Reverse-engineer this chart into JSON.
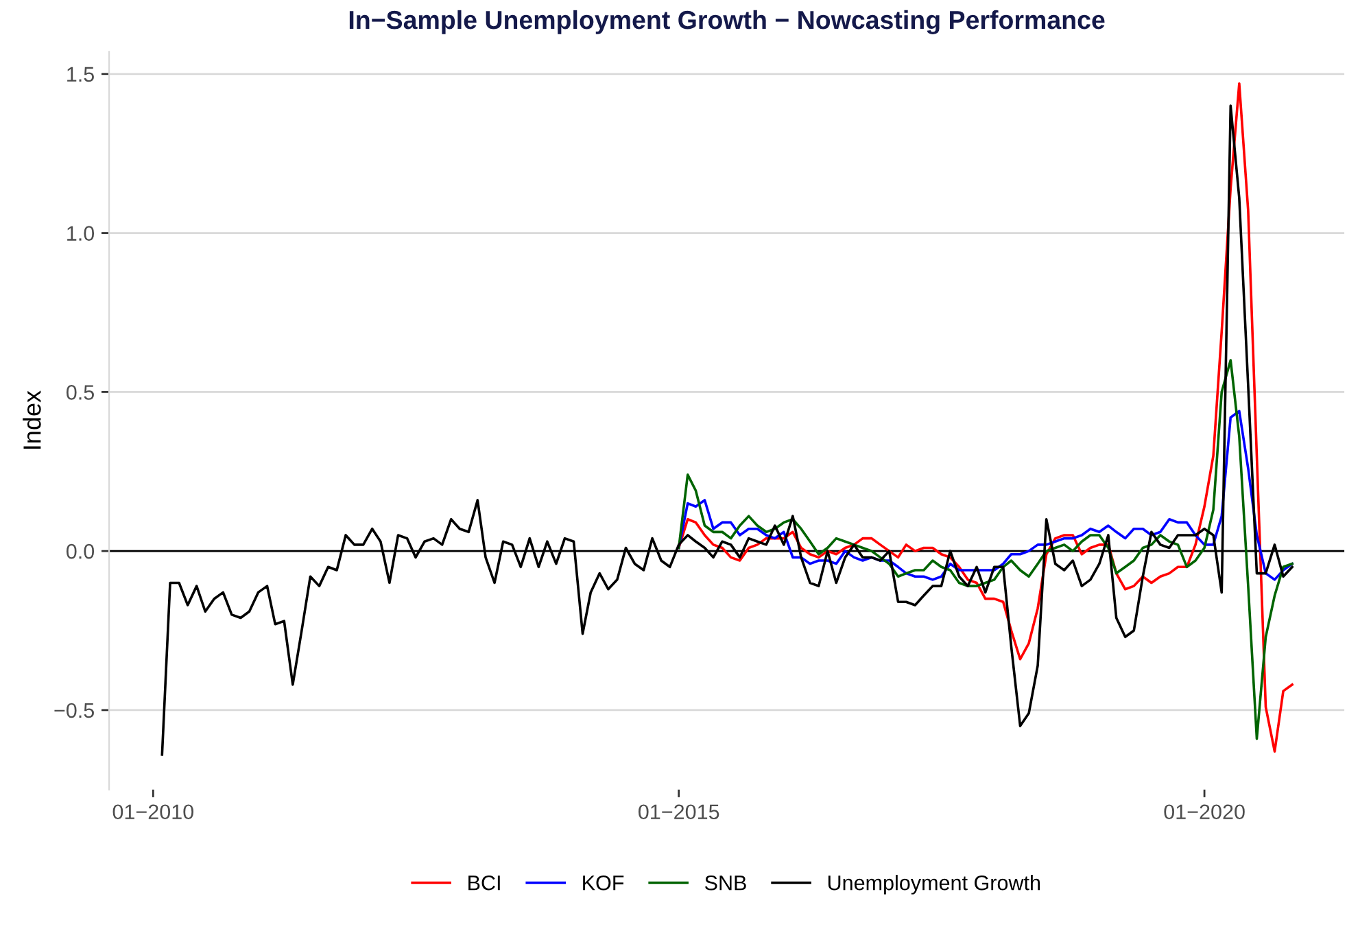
{
  "chart_data": {
    "type": "line",
    "title": "In−Sample Unemployment Growth − Nowcasting Performance",
    "ylabel": "Index",
    "x": [
      "2010-02",
      "2010-03",
      "2010-04",
      "2010-05",
      "2010-06",
      "2010-07",
      "2010-08",
      "2010-09",
      "2010-10",
      "2010-11",
      "2010-12",
      "2011-01",
      "2011-02",
      "2011-03",
      "2011-04",
      "2011-05",
      "2011-06",
      "2011-07",
      "2011-08",
      "2011-09",
      "2011-10",
      "2011-11",
      "2011-12",
      "2012-01",
      "2012-02",
      "2012-03",
      "2012-04",
      "2012-05",
      "2012-06",
      "2012-07",
      "2012-08",
      "2012-09",
      "2012-10",
      "2012-11",
      "2012-12",
      "2013-01",
      "2013-02",
      "2013-03",
      "2013-04",
      "2013-05",
      "2013-06",
      "2013-07",
      "2013-08",
      "2013-09",
      "2013-10",
      "2013-11",
      "2013-12",
      "2014-01",
      "2014-02",
      "2014-03",
      "2014-04",
      "2014-05",
      "2014-06",
      "2014-07",
      "2014-08",
      "2014-09",
      "2014-10",
      "2014-11",
      "2014-12",
      "2015-01",
      "2015-02",
      "2015-03",
      "2015-04",
      "2015-05",
      "2015-06",
      "2015-07",
      "2015-08",
      "2015-09",
      "2015-10",
      "2015-11",
      "2015-12",
      "2016-01",
      "2016-02",
      "2016-03",
      "2016-04",
      "2016-05",
      "2016-06",
      "2016-07",
      "2016-08",
      "2016-09",
      "2016-10",
      "2016-11",
      "2016-12",
      "2017-01",
      "2017-02",
      "2017-03",
      "2017-04",
      "2017-05",
      "2017-06",
      "2017-07",
      "2017-08",
      "2017-09",
      "2017-10",
      "2017-11",
      "2017-12",
      "2018-01",
      "2018-02",
      "2018-03",
      "2018-04",
      "2018-05",
      "2018-06",
      "2018-07",
      "2018-08",
      "2018-09",
      "2018-10",
      "2018-11",
      "2018-12",
      "2019-01",
      "2019-02",
      "2019-03",
      "2019-04",
      "2019-05",
      "2019-06",
      "2019-07",
      "2019-08",
      "2019-09",
      "2019-10",
      "2019-11",
      "2019-12",
      "2020-01",
      "2020-02",
      "2020-03",
      "2020-04",
      "2020-05",
      "2020-06",
      "2020-07",
      "2020-08",
      "2020-09",
      "2020-10",
      "2020-11"
    ],
    "series": [
      {
        "name": "BCI",
        "color": "#ff0000",
        "values": [
          null,
          null,
          null,
          null,
          null,
          null,
          null,
          null,
          null,
          null,
          null,
          null,
          null,
          null,
          null,
          null,
          null,
          null,
          null,
          null,
          null,
          null,
          null,
          null,
          null,
          null,
          null,
          null,
          null,
          null,
          null,
          null,
          null,
          null,
          null,
          null,
          null,
          null,
          null,
          null,
          null,
          null,
          null,
          null,
          null,
          null,
          null,
          null,
          null,
          null,
          null,
          null,
          null,
          null,
          null,
          null,
          null,
          null,
          null,
          0.01,
          0.1,
          0.09,
          0.05,
          0.02,
          0.01,
          -0.02,
          -0.03,
          0.01,
          0.02,
          0.04,
          0.04,
          0.04,
          0.06,
          0.01,
          -0.01,
          -0.02,
          0.0,
          -0.01,
          0.01,
          0.02,
          0.04,
          0.04,
          0.02,
          0.0,
          -0.02,
          0.02,
          0.0,
          0.01,
          0.01,
          -0.01,
          -0.02,
          -0.05,
          -0.09,
          -0.1,
          -0.15,
          -0.15,
          -0.16,
          -0.25,
          -0.34,
          -0.29,
          -0.18,
          -0.01,
          0.04,
          0.05,
          0.05,
          -0.01,
          0.01,
          0.02,
          0.02,
          -0.07,
          -0.12,
          -0.11,
          -0.08,
          -0.1,
          -0.08,
          -0.07,
          -0.05,
          -0.05,
          0.02,
          0.14,
          0.3,
          0.69,
          1.14,
          1.47,
          1.07,
          0.3,
          -0.49,
          -0.63,
          -0.44,
          -0.42
        ]
      },
      {
        "name": "KOF",
        "color": "#0000ff",
        "values": [
          null,
          null,
          null,
          null,
          null,
          null,
          null,
          null,
          null,
          null,
          null,
          null,
          null,
          null,
          null,
          null,
          null,
          null,
          null,
          null,
          null,
          null,
          null,
          null,
          null,
          null,
          null,
          null,
          null,
          null,
          null,
          null,
          null,
          null,
          null,
          null,
          null,
          null,
          null,
          null,
          null,
          null,
          null,
          null,
          null,
          null,
          null,
          null,
          null,
          null,
          null,
          null,
          null,
          null,
          null,
          null,
          null,
          null,
          null,
          0.01,
          0.15,
          0.14,
          0.16,
          0.07,
          0.09,
          0.09,
          0.05,
          0.07,
          0.07,
          0.05,
          0.04,
          0.06,
          -0.02,
          -0.02,
          -0.04,
          -0.03,
          -0.03,
          -0.04,
          0.0,
          -0.02,
          -0.03,
          -0.02,
          -0.03,
          -0.03,
          -0.05,
          -0.07,
          -0.08,
          -0.08,
          -0.09,
          -0.08,
          -0.04,
          -0.06,
          -0.06,
          -0.06,
          -0.06,
          -0.06,
          -0.04,
          -0.01,
          -0.01,
          0.0,
          0.02,
          0.02,
          0.03,
          0.04,
          0.04,
          0.05,
          0.07,
          0.06,
          0.08,
          0.06,
          0.04,
          0.07,
          0.07,
          0.05,
          0.06,
          0.1,
          0.09,
          0.09,
          0.05,
          0.02,
          0.02,
          0.11,
          0.42,
          0.44,
          0.26,
          0.05,
          -0.07,
          -0.09,
          -0.06,
          -0.04
        ]
      },
      {
        "name": "SNB",
        "color": "#006400",
        "values": [
          null,
          null,
          null,
          null,
          null,
          null,
          null,
          null,
          null,
          null,
          null,
          null,
          null,
          null,
          null,
          null,
          null,
          null,
          null,
          null,
          null,
          null,
          null,
          null,
          null,
          null,
          null,
          null,
          null,
          null,
          null,
          null,
          null,
          null,
          null,
          null,
          null,
          null,
          null,
          null,
          null,
          null,
          null,
          null,
          null,
          null,
          null,
          null,
          null,
          null,
          null,
          null,
          null,
          null,
          null,
          null,
          null,
          null,
          null,
          0.01,
          0.24,
          0.19,
          0.08,
          0.06,
          0.06,
          0.04,
          0.08,
          0.11,
          0.08,
          0.06,
          0.07,
          0.09,
          0.1,
          0.07,
          0.03,
          -0.01,
          0.01,
          0.04,
          0.03,
          0.02,
          0.01,
          0.0,
          -0.02,
          -0.04,
          -0.08,
          -0.07,
          -0.06,
          -0.06,
          -0.03,
          -0.05,
          -0.06,
          -0.1,
          -0.11,
          -0.11,
          -0.1,
          -0.09,
          -0.05,
          -0.03,
          -0.06,
          -0.08,
          -0.04,
          0.0,
          0.01,
          0.02,
          0.0,
          0.03,
          0.05,
          0.05,
          0.01,
          -0.07,
          -0.05,
          -0.03,
          0.01,
          0.02,
          0.05,
          0.03,
          0.02,
          -0.05,
          -0.03,
          0.01,
          0.13,
          0.5,
          0.6,
          0.36,
          -0.11,
          -0.59,
          -0.27,
          -0.14,
          -0.05,
          -0.04
        ]
      },
      {
        "name": "Unemployment Growth",
        "color": "#000000",
        "values": [
          -0.64,
          -0.1,
          -0.1,
          -0.17,
          -0.11,
          -0.19,
          -0.15,
          -0.13,
          -0.2,
          -0.21,
          -0.19,
          -0.13,
          -0.11,
          -0.23,
          -0.22,
          -0.42,
          -0.25,
          -0.08,
          -0.11,
          -0.05,
          -0.06,
          0.05,
          0.02,
          0.02,
          0.07,
          0.03,
          -0.1,
          0.05,
          0.04,
          -0.02,
          0.03,
          0.04,
          0.02,
          0.1,
          0.07,
          0.06,
          0.16,
          -0.02,
          -0.1,
          0.03,
          0.02,
          -0.05,
          0.04,
          -0.05,
          0.03,
          -0.04,
          0.04,
          0.03,
          -0.26,
          -0.13,
          -0.07,
          -0.12,
          -0.09,
          0.01,
          -0.04,
          -0.06,
          0.04,
          -0.03,
          -0.05,
          0.02,
          0.05,
          0.03,
          0.01,
          -0.02,
          0.03,
          0.02,
          -0.02,
          0.04,
          0.03,
          0.02,
          0.08,
          0.02,
          0.11,
          -0.02,
          -0.1,
          -0.11,
          0.0,
          -0.1,
          -0.02,
          0.02,
          -0.02,
          -0.02,
          -0.03,
          0.0,
          -0.16,
          -0.16,
          -0.17,
          -0.14,
          -0.11,
          -0.11,
          0.0,
          -0.08,
          -0.11,
          -0.05,
          -0.13,
          -0.05,
          -0.05,
          -0.3,
          -0.55,
          -0.51,
          -0.36,
          0.1,
          -0.04,
          -0.06,
          -0.03,
          -0.11,
          -0.09,
          -0.04,
          0.05,
          -0.21,
          -0.27,
          -0.25,
          -0.08,
          0.06,
          0.02,
          0.01,
          0.05,
          0.05,
          0.05,
          0.07,
          0.05,
          -0.13,
          1.4,
          1.11,
          0.52,
          -0.07,
          -0.07,
          0.02,
          -0.08,
          -0.05
        ]
      }
    ],
    "xlim": [
      "2009-08",
      "2021-05"
    ],
    "xticks": [
      {
        "value": "2010-01",
        "label": "01−2010"
      },
      {
        "value": "2015-01",
        "label": "01−2015"
      },
      {
        "value": "2020-01",
        "label": "01−2020"
      }
    ],
    "ylim": [
      -0.75,
      1.57
    ],
    "yticks": [
      {
        "value": -0.5,
        "label": "−0.5"
      },
      {
        "value": 0,
        "label": "0.0"
      },
      {
        "value": 0.5,
        "label": "0.5"
      },
      {
        "value": 1.0,
        "label": "1.0"
      },
      {
        "value": 1.5,
        "label": "1.5"
      }
    ],
    "ref_lines": [
      {
        "axis": "y",
        "value": 0,
        "color": "#000000"
      }
    ],
    "grid": "y",
    "legend": "bottom",
    "marker": "none",
    "line_style": "solid"
  }
}
